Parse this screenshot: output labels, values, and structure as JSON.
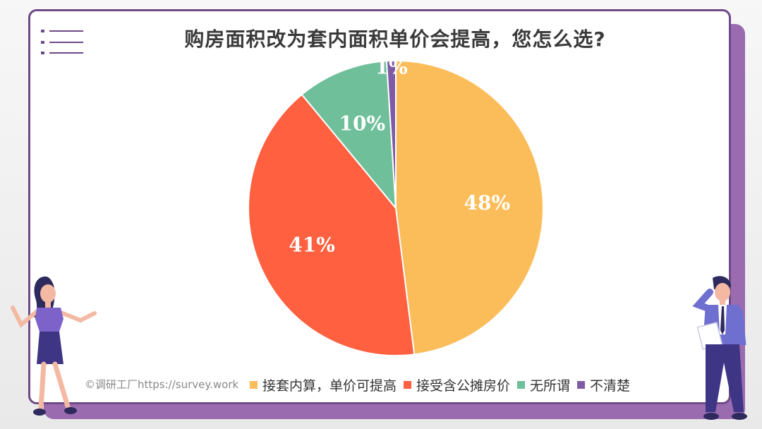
{
  "title": "购房面积改为套内面积单价会提高，您怎么选?",
  "source": "©调研工厂https://survey.work",
  "icons": [
    "menu-list-icon",
    "woman-presenting-illustration",
    "man-on-phone-illustration"
  ],
  "colors": {
    "frame": "#6e4a86",
    "frame_shadow": "#9b6bb0",
    "title": "#3a3a3a"
  },
  "chart_data": {
    "type": "pie",
    "title": "购房面积改为套内面积单价会提高，您怎么选?",
    "series": [
      {
        "label": "接套内算，单价可提高",
        "value": 48,
        "display": "48%",
        "color": "#fbbd5a"
      },
      {
        "label": "接受含公摊房价",
        "value": 41,
        "display": "41%",
        "color": "#fe6040"
      },
      {
        "label": "无所谓",
        "value": 10,
        "display": "10%",
        "color": "#6fbf9a"
      },
      {
        "label": "不清楚",
        "value": 1,
        "display": "1%",
        "color": "#7f5ba6"
      }
    ],
    "start_angle": "12 o'clock",
    "direction": "clockwise",
    "legend_position": "bottom"
  }
}
